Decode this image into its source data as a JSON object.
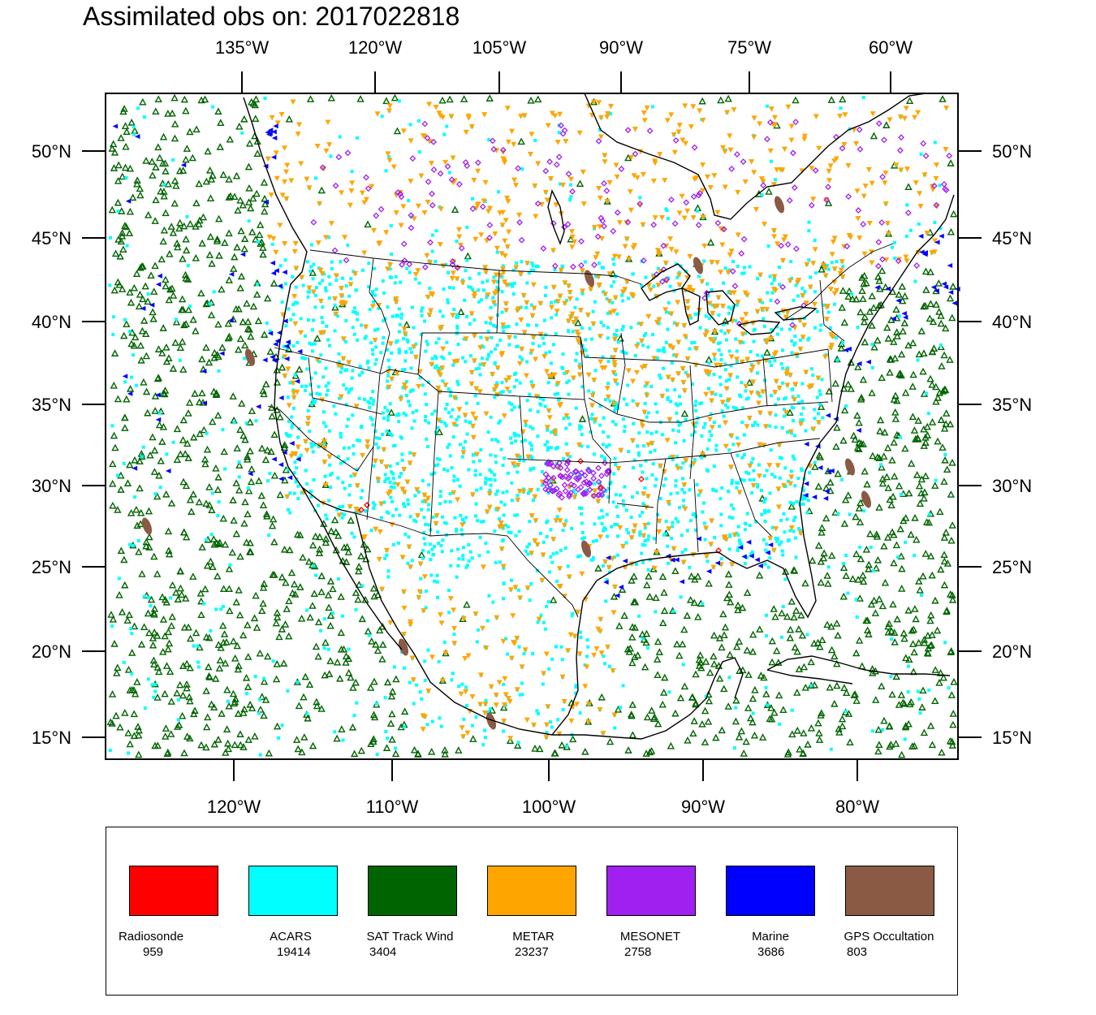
{
  "title": "Assimilated obs on: 2017022818",
  "axes": {
    "top_lon_labels": [
      "135°W",
      "120°W",
      "105°W",
      "90°W",
      "75°W",
      "60°W"
    ],
    "bottom_lon_labels": [
      "120°W",
      "110°W",
      "100°W",
      "90°W",
      "80°W"
    ],
    "lat_labels": [
      "50°N",
      "45°N",
      "40°N",
      "35°N",
      "30°N",
      "25°N",
      "20°N",
      "15°N"
    ]
  },
  "legend": [
    {
      "name": "Radiosonde",
      "count": "959",
      "color": "#ff0000",
      "marker": "diamond"
    },
    {
      "name": "ACARS",
      "count": "19414",
      "color": "#00ffff",
      "marker": "square"
    },
    {
      "name": "SAT Track Wind",
      "count": "3404",
      "color": "#006400",
      "marker": "triangle-up"
    },
    {
      "name": "METAR",
      "count": "23237",
      "color": "#ffa500",
      "marker": "triangle-down"
    },
    {
      "name": "MESONET",
      "count": "2758",
      "color": "#a020f0",
      "marker": "diamond"
    },
    {
      "name": "Marine",
      "count": "3686",
      "color": "#0000ff",
      "marker": "triangle-left"
    },
    {
      "name": "GPS Occultation",
      "count": "803",
      "color": "#8b5a44",
      "marker": "ellipse"
    }
  ]
}
